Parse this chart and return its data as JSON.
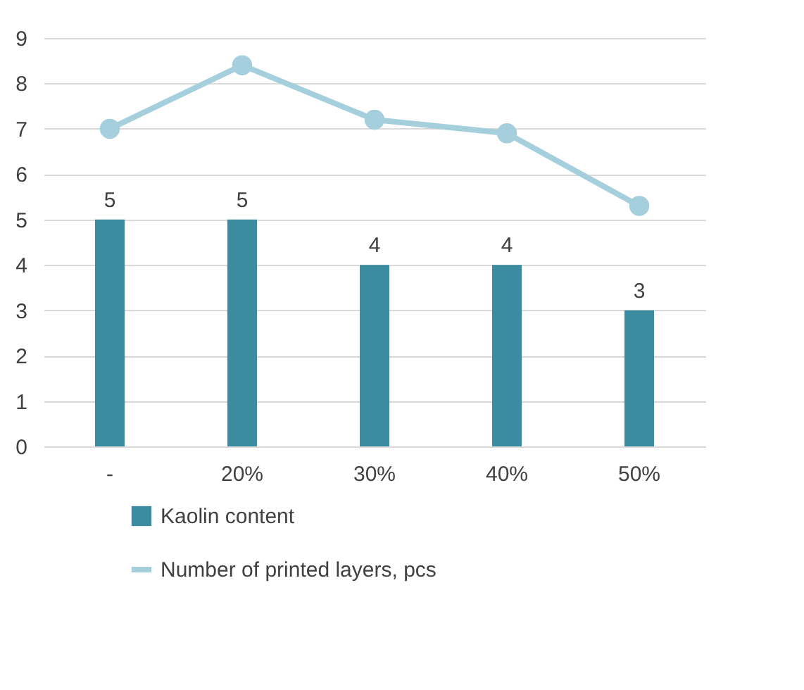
{
  "chart_data": {
    "type": "bar",
    "categories": [
      "-",
      "20%",
      "30%",
      "40%",
      "50%"
    ],
    "series": [
      {
        "name": "Kaolin content",
        "type": "bar",
        "color": "#3b8ba1",
        "values": [
          5,
          5,
          4,
          4,
          3
        ],
        "value_labels": [
          "5",
          "5",
          "4",
          "4",
          "3"
        ]
      },
      {
        "name": "Number of printed layers, pcs",
        "type": "line",
        "color": "#a5cfdc",
        "values": [
          7.0,
          8.4,
          7.2,
          6.9,
          5.3
        ],
        "marker": "circle"
      }
    ],
    "ylim": [
      0,
      9
    ],
    "yticks": [
      0,
      1,
      2,
      3,
      4,
      5,
      6,
      7,
      8,
      9
    ],
    "grid": "y",
    "legend": "bottom"
  }
}
